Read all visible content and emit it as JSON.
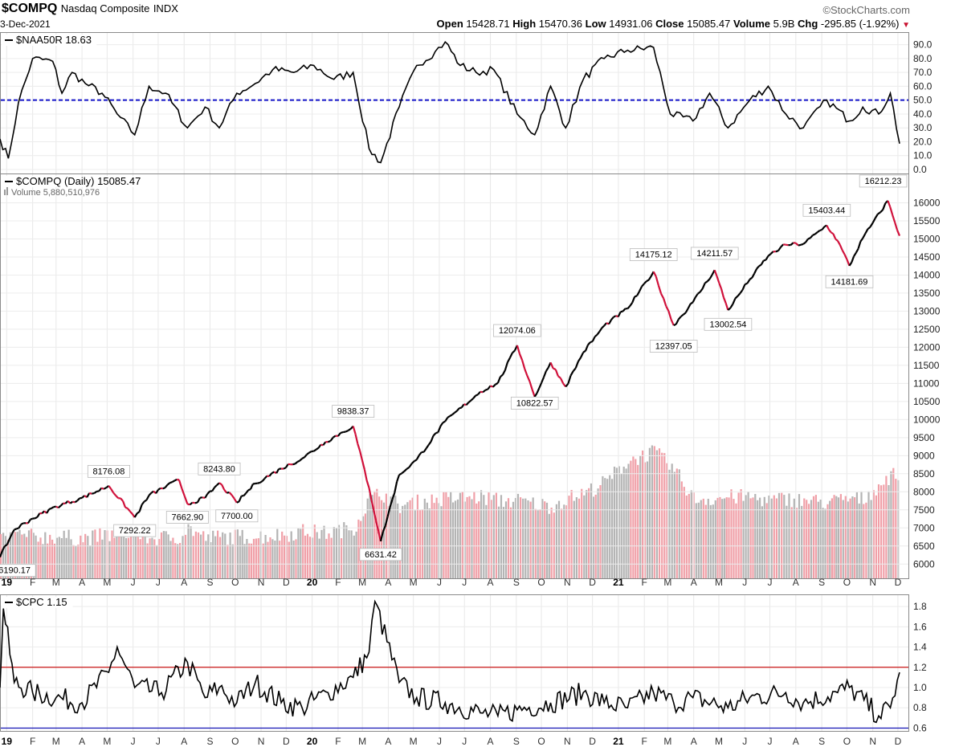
{
  "header": {
    "symbol": "$COMPQ",
    "name": "Nasdaq Composite",
    "exchange": "INDX",
    "date": "3-Dec-2021",
    "brand": "©StockCharts.com",
    "ohlc": {
      "open_label": "Open",
      "open": "15428.71",
      "high_label": "High",
      "high": "15470.36",
      "low_label": "Low",
      "low": "14931.06",
      "close_label": "Close",
      "close": "15085.47",
      "volume_label": "Volume",
      "volume": "5.9B",
      "chg_label": "Chg",
      "chg": "-295.85 (-1.92%)"
    },
    "chg_arrow": "▼"
  },
  "x_axis_labels": [
    "19",
    "F",
    "M",
    "A",
    "M",
    "J",
    "J",
    "A",
    "S",
    "O",
    "N",
    "D",
    "20",
    "F",
    "M",
    "A",
    "M",
    "J",
    "J",
    "A",
    "S",
    "O",
    "N",
    "D",
    "21",
    "F",
    "M",
    "A",
    "M",
    "J",
    "J",
    "A",
    "S",
    "O",
    "N",
    "D"
  ],
  "chart_data": [
    {
      "type": "line",
      "legend": "$NAA50R 18.63",
      "ylim": [
        0,
        95
      ],
      "yticks": [
        0,
        10,
        20,
        30,
        40,
        50,
        60,
        70,
        80,
        90
      ],
      "reference_line": {
        "value": 50,
        "color": "#1414c8",
        "style": "dashed"
      },
      "x_dates": [
        "2018-12-24",
        "2019-01-03",
        "2019-01-15",
        "2019-02-01",
        "2019-02-25",
        "2019-03-08",
        "2019-03-20",
        "2019-04-05",
        "2019-04-25",
        "2019-05-13",
        "2019-06-03",
        "2019-06-20",
        "2019-07-10",
        "2019-08-05",
        "2019-08-26",
        "2019-09-12",
        "2019-10-03",
        "2019-10-25",
        "2019-11-15",
        "2019-12-10",
        "2020-01-03",
        "2020-01-27",
        "2020-02-19",
        "2020-03-09",
        "2020-03-23",
        "2020-04-14",
        "2020-05-05",
        "2020-05-27",
        "2020-06-08",
        "2020-06-26",
        "2020-07-15",
        "2020-08-05",
        "2020-09-02",
        "2020-09-23",
        "2020-10-12",
        "2020-10-30",
        "2020-11-20",
        "2020-12-15",
        "2021-01-12",
        "2021-02-12",
        "2021-03-04",
        "2021-03-31",
        "2021-04-20",
        "2021-05-12",
        "2021-06-07",
        "2021-06-29",
        "2021-07-20",
        "2021-08-10",
        "2021-09-07",
        "2021-10-04",
        "2021-10-20",
        "2021-11-08",
        "2021-11-22",
        "2021-12-03"
      ],
      "values": [
        22,
        8,
        48,
        80,
        78,
        55,
        70,
        62,
        55,
        40,
        25,
        60,
        55,
        30,
        45,
        30,
        55,
        62,
        72,
        70,
        75,
        65,
        70,
        15,
        5,
        45,
        75,
        85,
        92,
        75,
        70,
        72,
        40,
        25,
        60,
        30,
        65,
        80,
        86,
        88,
        40,
        35,
        55,
        30,
        50,
        60,
        40,
        30,
        50,
        35,
        45,
        40,
        55,
        18.63
      ]
    },
    {
      "type": "line",
      "legend": "$COMPQ (Daily) 15085.47",
      "volume_legend": "Volume 5,880,510,976",
      "ylim": [
        5850,
        16500
      ],
      "yticks": [
        6000,
        6500,
        7000,
        7500,
        8000,
        8500,
        9000,
        9500,
        10000,
        10500,
        11000,
        11500,
        12000,
        12500,
        13000,
        13500,
        14000,
        14500,
        15000,
        15500,
        16000
      ],
      "x_dates": [
        "2018-12-24",
        "2019-01-10",
        "2019-02-01",
        "2019-03-01",
        "2019-04-01",
        "2019-05-03",
        "2019-06-03",
        "2019-06-20",
        "2019-07-26",
        "2019-08-05",
        "2019-08-26",
        "2019-09-12",
        "2019-10-03",
        "2019-10-25",
        "2019-11-25",
        "2019-12-20",
        "2020-01-17",
        "2020-02-19",
        "2020-03-09",
        "2020-03-23",
        "2020-04-14",
        "2020-05-05",
        "2020-06-08",
        "2020-07-20",
        "2020-08-10",
        "2020-09-02",
        "2020-09-23",
        "2020-10-12",
        "2020-10-30",
        "2020-11-20",
        "2020-12-15",
        "2021-01-12",
        "2021-02-12",
        "2021-03-08",
        "2021-03-31",
        "2021-04-26",
        "2021-05-12",
        "2021-06-07",
        "2021-06-29",
        "2021-07-20",
        "2021-08-10",
        "2021-09-07",
        "2021-09-20",
        "2021-10-04",
        "2021-10-20",
        "2021-11-19",
        "2021-12-03"
      ],
      "close": [
        6190.17,
        6950,
        7260,
        7590,
        7830,
        8164,
        7292.22,
        7900,
        8330,
        7662.9,
        7830,
        8243.8,
        7700,
        8230,
        8640,
        8920,
        9380,
        9817,
        8110,
        6631.42,
        8470,
        8890,
        9950,
        10770,
        11010,
        12056,
        10630,
        11580,
        10911,
        11860,
        12595,
        13072,
        14095,
        12609,
        13247,
        14138,
        13031,
        13881,
        14528,
        14840,
        14860,
        15374,
        14950,
        14256,
        15020,
        16057,
        15085.47
      ],
      "volume_billions": [
        2.2,
        2.4,
        2.3,
        2.3,
        2.2,
        2.4,
        2.6,
        2.2,
        2.3,
        2.8,
        2.2,
        2.3,
        2.3,
        2.3,
        2.4,
        2.6,
        2.5,
        2.8,
        4.4,
        4.7,
        4.0,
        4.2,
        4.4,
        4.5,
        4.3,
        4.3,
        4.1,
        4.0,
        4.4,
        4.7,
        5.3,
        6.5,
        7.0,
        6.0,
        4.4,
        4.4,
        4.5,
        4.5,
        4.3,
        4.4,
        4.3,
        4.2,
        4.3,
        4.4,
        4.4,
        5.6,
        5.9
      ],
      "annotations": [
        {
          "label": "6190.17",
          "date": "2018-12-24",
          "value": 6190.17,
          "pos": "below"
        },
        {
          "label": "8176.08",
          "date": "2019-05-03",
          "value": 8176.08,
          "pos": "above"
        },
        {
          "label": "7292.22",
          "date": "2019-06-03",
          "value": 7292.22,
          "pos": "below"
        },
        {
          "label": "7662.90",
          "date": "2019-08-05",
          "value": 7662.9,
          "pos": "below"
        },
        {
          "label": "8243.80",
          "date": "2019-09-12",
          "value": 8243.8,
          "pos": "above"
        },
        {
          "label": "7700.00",
          "date": "2019-10-03",
          "value": 7700,
          "pos": "below"
        },
        {
          "label": "9838.37",
          "date": "2020-02-19",
          "value": 9838.37,
          "pos": "above"
        },
        {
          "label": "6631.42",
          "date": "2020-03-23",
          "value": 6631.42,
          "pos": "below"
        },
        {
          "label": "12074.06",
          "date": "2020-09-02",
          "value": 12074.06,
          "pos": "above"
        },
        {
          "label": "10822.57",
          "date": "2020-09-23",
          "value": 10822.57,
          "pos": "below"
        },
        {
          "label": "14175.12",
          "date": "2021-02-12",
          "value": 14175.12,
          "pos": "above"
        },
        {
          "label": "12397.05",
          "date": "2021-03-08",
          "value": 12397.05,
          "pos": "below"
        },
        {
          "label": "14211.57",
          "date": "2021-04-26",
          "value": 14211.57,
          "pos": "above"
        },
        {
          "label": "13002.54",
          "date": "2021-05-12",
          "value": 13002.54,
          "pos": "below"
        },
        {
          "label": "15403.44",
          "date": "2021-09-07",
          "value": 15403.44,
          "pos": "above"
        },
        {
          "label": "14181.69",
          "date": "2021-10-04",
          "value": 14181.69,
          "pos": "below"
        },
        {
          "label": "16212.23",
          "date": "2021-11-19",
          "value": 16212.23,
          "pos": "above"
        }
      ],
      "colors": {
        "up": "#000000",
        "down": "#d0103a",
        "volume_up": "#b4b4b4",
        "volume_down": "#f0a0a8"
      }
    },
    {
      "type": "line",
      "legend": "$CPC 1.15",
      "ylim": [
        0.58,
        1.88
      ],
      "yticks": [
        0.6,
        0.8,
        1.0,
        1.2,
        1.4,
        1.6,
        1.8
      ],
      "reference_lines": [
        {
          "value": 1.2,
          "color": "#c81414"
        },
        {
          "value": 0.6,
          "color": "#1414b4"
        }
      ],
      "x_dates": [
        "2018-12-24",
        "2018-12-28",
        "2019-01-10",
        "2019-02-01",
        "2019-03-01",
        "2019-04-01",
        "2019-05-03",
        "2019-05-13",
        "2019-06-03",
        "2019-07-05",
        "2019-08-05",
        "2019-08-26",
        "2019-09-12",
        "2019-10-03",
        "2019-10-25",
        "2019-11-25",
        "2019-12-20",
        "2020-01-20",
        "2020-02-19",
        "2020-03-09",
        "2020-03-16",
        "2020-04-14",
        "2020-05-05",
        "2020-06-08",
        "2020-07-20",
        "2020-08-10",
        "2020-09-02",
        "2020-10-12",
        "2020-11-20",
        "2020-12-15",
        "2021-01-12",
        "2021-02-12",
        "2021-03-08",
        "2021-03-31",
        "2021-05-12",
        "2021-06-07",
        "2021-07-20",
        "2021-08-10",
        "2021-09-20",
        "2021-10-04",
        "2021-11-08",
        "2021-11-22",
        "2021-12-03"
      ],
      "values": [
        1.0,
        1.78,
        1.05,
        0.95,
        0.9,
        0.85,
        1.15,
        1.4,
        1.0,
        0.95,
        1.25,
        0.9,
        1.0,
        0.85,
        1.05,
        0.85,
        0.8,
        0.95,
        1.1,
        1.35,
        1.85,
        1.05,
        0.9,
        0.85,
        0.75,
        0.72,
        0.78,
        0.85,
        0.95,
        0.85,
        0.8,
        0.95,
        0.85,
        0.9,
        0.8,
        0.9,
        0.95,
        0.85,
        0.95,
        1.0,
        0.72,
        0.8,
        1.15
      ]
    }
  ]
}
